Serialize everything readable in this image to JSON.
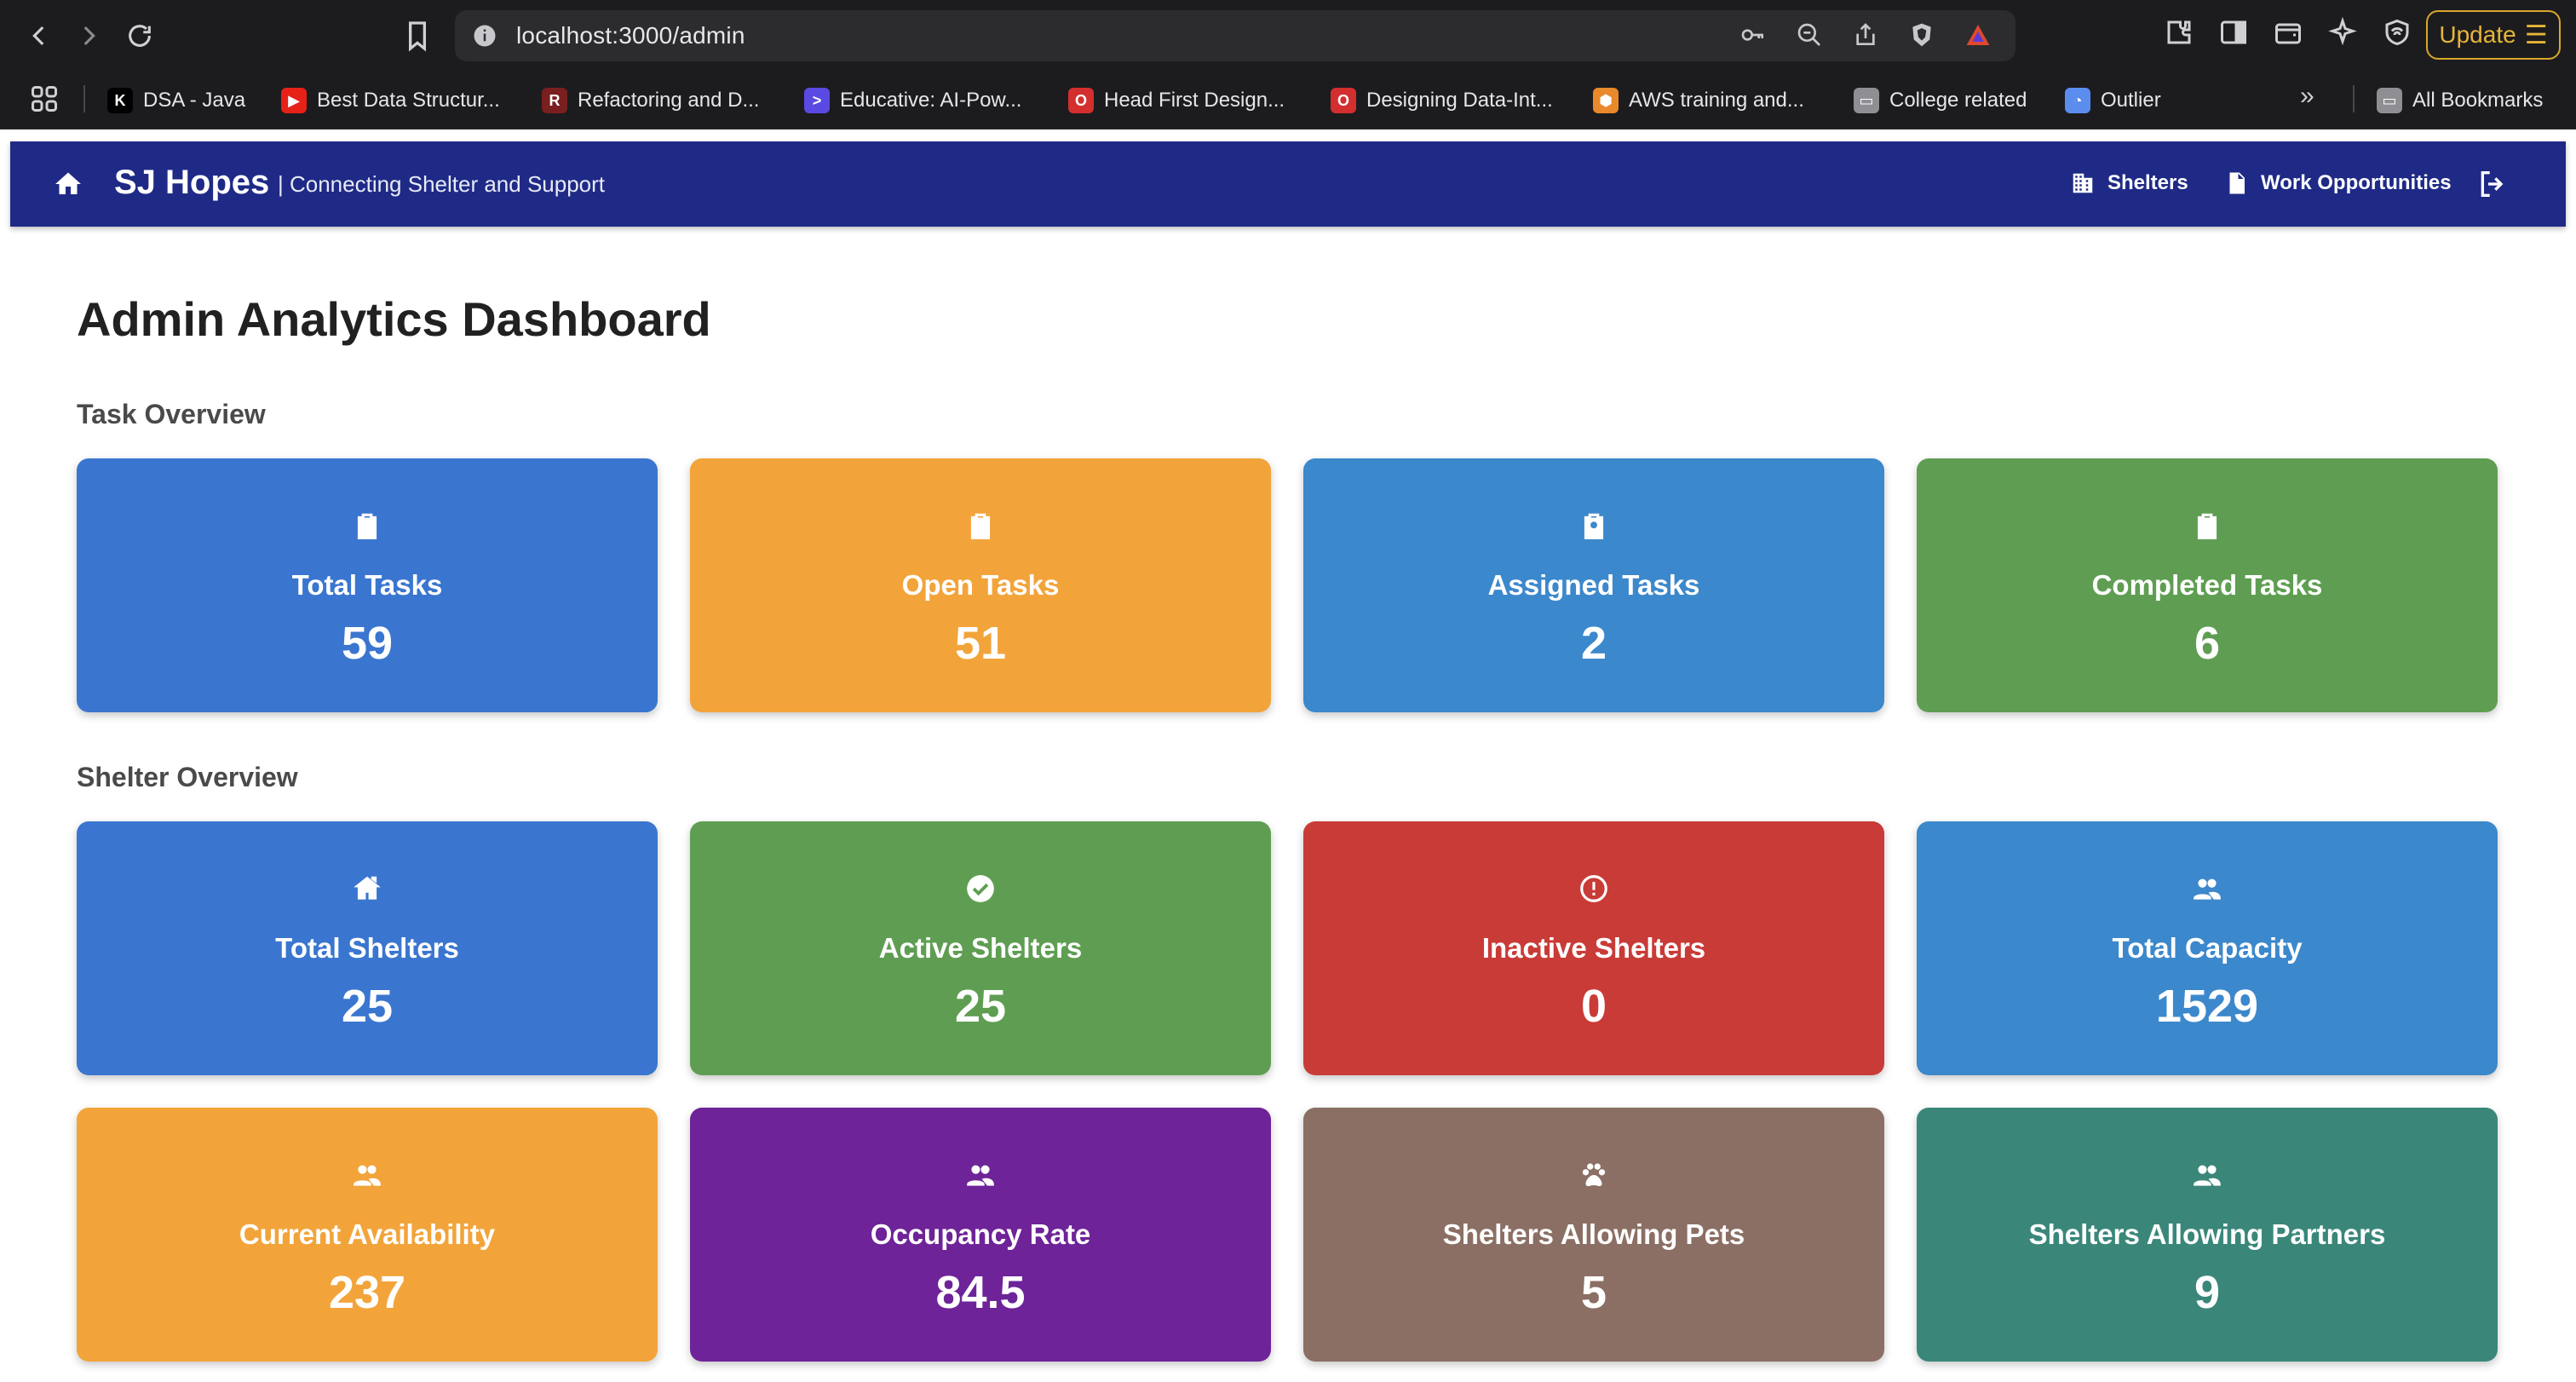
{
  "browser": {
    "url": "localhost:3000/admin",
    "update_label": "Update",
    "bookmarks": [
      {
        "label": "DSA - Java",
        "fav": "K",
        "color": "#000000"
      },
      {
        "label": "Best Data Structur...",
        "fav": "▶",
        "color": "#e62117"
      },
      {
        "label": "Refactoring and D...",
        "fav": "R",
        "color": "#7a1f1f"
      },
      {
        "label": "Educative: AI-Pow...",
        "fav": ">",
        "color": "#5a4ae3"
      },
      {
        "label": "Head First Design...",
        "fav": "O",
        "color": "#d32f2f"
      },
      {
        "label": "Designing Data-Int...",
        "fav": "O",
        "color": "#d32f2f"
      },
      {
        "label": "AWS training and...",
        "fav": "⬢",
        "color": "#e8892b"
      },
      {
        "label": "College related",
        "fav": "▭",
        "color": "#8e8e93"
      },
      {
        "label": "Outlier",
        "fav": "◔",
        "color": "#5b8def"
      }
    ],
    "all_bookmarks_label": "All Bookmarks",
    "more_label": "»"
  },
  "header": {
    "brand": "SJ Hopes",
    "tagline": "| Connecting Shelter and Support",
    "nav": {
      "shelters": "Shelters",
      "work": "Work Opportunities"
    }
  },
  "page": {
    "title": "Admin Analytics Dashboard",
    "task_section": "Task Overview",
    "shelter_section": "Shelter Overview"
  },
  "cards": [
    {
      "label": "Total Tasks",
      "value": "59",
      "icon": "clipboard-icon",
      "color": "#3a76cf"
    },
    {
      "label": "Open Tasks",
      "value": "51",
      "icon": "clipboard-alert-icon",
      "color": "#f2a43a"
    },
    {
      "label": "Assigned Tasks",
      "value": "2",
      "icon": "clipboard-person-icon",
      "color": "#3c88cc"
    },
    {
      "label": "Completed Tasks",
      "value": "6",
      "icon": "clipboard-check-icon",
      "color": "#5f9e52"
    },
    {
      "label": "Total Shelters",
      "value": "25",
      "icon": "house-icon",
      "color": "#3a76cf"
    },
    {
      "label": "Active Shelters",
      "value": "25",
      "icon": "check-circle-icon",
      "color": "#5f9e52"
    },
    {
      "label": "Inactive Shelters",
      "value": "0",
      "icon": "error-circle-icon",
      "color": "#c93b37"
    },
    {
      "label": "Total Capacity",
      "value": "1529",
      "icon": "people-icon",
      "color": "#3c88cc"
    },
    {
      "label": "Current Availability",
      "value": "237",
      "icon": "people-icon",
      "color": "#f2a43a"
    },
    {
      "label": "Occupancy Rate",
      "value": "84.5",
      "icon": "people-icon",
      "color": "#6e2398"
    },
    {
      "label": "Shelters Allowing Pets",
      "value": "5",
      "icon": "paw-icon",
      "color": "#8b6f64"
    },
    {
      "label": "Shelters Allowing Partners",
      "value": "9",
      "icon": "people-icon",
      "color": "#3a877a"
    }
  ]
}
